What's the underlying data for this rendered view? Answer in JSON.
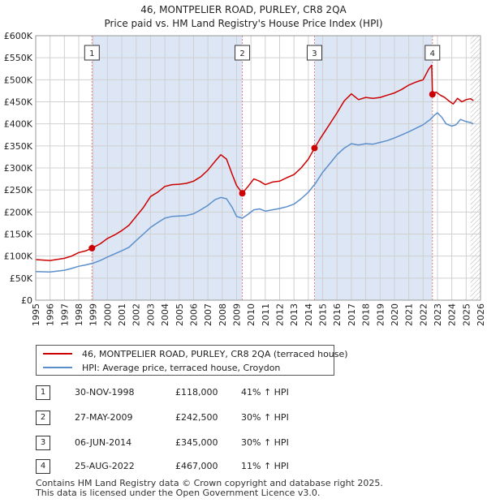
{
  "header": {
    "title": "46, MONTPELIER ROAD, PURLEY, CR8 2QA",
    "subtitle": "Price paid vs. HM Land Registry's House Price Index (HPI)"
  },
  "colors": {
    "property": "#cc0000",
    "hpi": "#5b8fcc",
    "shade": "#dde6f5",
    "grid": "#d0d0d0"
  },
  "chart_data": {
    "type": "line",
    "title": "46, MONTPELIER ROAD, PURLEY, CR8 2QA",
    "subtitle": "Price paid vs. HM Land Registry's House Price Index (HPI)",
    "xlabel": "",
    "ylabel": "",
    "xlim": [
      1995,
      2026
    ],
    "ylim": [
      0,
      600000
    ],
    "y_ticks": [
      0,
      50000,
      100000,
      150000,
      200000,
      250000,
      300000,
      350000,
      400000,
      450000,
      500000,
      550000,
      600000
    ],
    "y_tick_labels": [
      "£0",
      "£50K",
      "£100K",
      "£150K",
      "£200K",
      "£250K",
      "£300K",
      "£350K",
      "£400K",
      "£450K",
      "£500K",
      "£550K",
      "£600K"
    ],
    "x_ticks": [
      1995,
      1996,
      1997,
      1998,
      1999,
      2000,
      2001,
      2002,
      2003,
      2004,
      2005,
      2006,
      2007,
      2008,
      2009,
      2010,
      2011,
      2012,
      2013,
      2014,
      2015,
      2016,
      2017,
      2018,
      2019,
      2020,
      2021,
      2022,
      2023,
      2024,
      2025,
      2026
    ],
    "shaded_ranges": [
      [
        1998.92,
        2009.4
      ],
      [
        2014.43,
        2022.65
      ]
    ],
    "hatched_from": 2025.3,
    "series": [
      {
        "name": "46, MONTPELIER ROAD, PURLEY, CR8 2QA (terraced house)",
        "color": "#cc0000",
        "x": [
          1995.0,
          1996.0,
          1997.0,
          1997.5,
          1998.0,
          1998.5,
          1998.92,
          1999.5,
          2000.0,
          2000.5,
          2001.0,
          2001.5,
          2002.0,
          2002.5,
          2003.0,
          2003.5,
          2004.0,
          2004.5,
          2005.0,
          2005.5,
          2006.0,
          2006.5,
          2007.0,
          2007.5,
          2007.9,
          2008.3,
          2008.7,
          2009.0,
          2009.4,
          2009.8,
          2010.2,
          2010.6,
          2011.0,
          2011.5,
          2012.0,
          2012.5,
          2013.0,
          2013.5,
          2014.0,
          2014.43,
          2014.8,
          2015.2,
          2015.6,
          2016.0,
          2016.5,
          2017.0,
          2017.5,
          2018.0,
          2018.5,
          2019.0,
          2019.5,
          2020.0,
          2020.5,
          2021.0,
          2021.5,
          2022.0,
          2022.4,
          2022.6,
          2022.65,
          2022.9,
          2023.2,
          2023.5,
          2023.8,
          2024.1,
          2024.4,
          2024.7,
          2025.0,
          2025.3,
          2025.5
        ],
        "values": [
          92000,
          90000,
          95000,
          100000,
          108000,
          112000,
          118000,
          128000,
          140000,
          148000,
          158000,
          170000,
          190000,
          210000,
          235000,
          245000,
          258000,
          262000,
          263000,
          265000,
          270000,
          280000,
          295000,
          315000,
          330000,
          320000,
          285000,
          260000,
          242500,
          258000,
          275000,
          270000,
          262000,
          268000,
          270000,
          278000,
          285000,
          300000,
          320000,
          345000,
          365000,
          385000,
          405000,
          425000,
          452000,
          468000,
          455000,
          460000,
          458000,
          460000,
          465000,
          470000,
          478000,
          488000,
          495000,
          500000,
          525000,
          533000,
          467000,
          472000,
          465000,
          460000,
          452000,
          445000,
          458000,
          450000,
          455000,
          457000,
          453000
        ]
      },
      {
        "name": "HPI: Average price, terraced house, Croydon",
        "color": "#5b8fcc",
        "x": [
          1995.0,
          1996.0,
          1997.0,
          1997.5,
          1998.0,
          1998.5,
          1999.0,
          1999.5,
          2000.0,
          2000.5,
          2001.0,
          2001.5,
          2002.0,
          2002.5,
          2003.0,
          2003.5,
          2004.0,
          2004.5,
          2005.0,
          2005.5,
          2006.0,
          2006.5,
          2007.0,
          2007.5,
          2007.9,
          2008.3,
          2008.7,
          2009.0,
          2009.4,
          2009.8,
          2010.2,
          2010.6,
          2011.0,
          2011.5,
          2012.0,
          2012.5,
          2013.0,
          2013.5,
          2014.0,
          2014.5,
          2015.0,
          2015.5,
          2016.0,
          2016.5,
          2017.0,
          2017.5,
          2018.0,
          2018.5,
          2019.0,
          2019.5,
          2020.0,
          2020.5,
          2021.0,
          2021.5,
          2022.0,
          2022.5,
          2022.8,
          2023.0,
          2023.3,
          2023.6,
          2024.0,
          2024.3,
          2024.6,
          2025.0,
          2025.3,
          2025.5
        ],
        "values": [
          65000,
          64000,
          68000,
          72000,
          77000,
          80000,
          84000,
          90000,
          98000,
          105000,
          112000,
          120000,
          135000,
          150000,
          165000,
          176000,
          186000,
          190000,
          191000,
          192000,
          196000,
          205000,
          215000,
          228000,
          233000,
          230000,
          210000,
          190000,
          186000,
          195000,
          205000,
          207000,
          202000,
          205000,
          208000,
          212000,
          218000,
          230000,
          245000,
          265000,
          290000,
          310000,
          330000,
          345000,
          355000,
          352000,
          355000,
          354000,
          358000,
          362000,
          368000,
          375000,
          382000,
          390000,
          398000,
          410000,
          420000,
          425000,
          415000,
          400000,
          395000,
          398000,
          410000,
          405000,
          403000,
          400000
        ]
      }
    ],
    "markers": [
      {
        "id": "1",
        "x": 1998.92,
        "value": 118000
      },
      {
        "id": "2",
        "x": 2009.4,
        "value": 242500
      },
      {
        "id": "3",
        "x": 2014.43,
        "value": 345000
      },
      {
        "id": "4",
        "x": 2022.65,
        "value": 467000
      }
    ]
  },
  "legend": {
    "property": "46, MONTPELIER ROAD, PURLEY, CR8 2QA (terraced house)",
    "hpi": "HPI: Average price, terraced house, Croydon"
  },
  "transactions": [
    {
      "id": "1",
      "date": "30-NOV-1998",
      "price": "£118,000",
      "hpi": "41% ↑ HPI"
    },
    {
      "id": "2",
      "date": "27-MAY-2009",
      "price": "£242,500",
      "hpi": "30% ↑ HPI"
    },
    {
      "id": "3",
      "date": "06-JUN-2014",
      "price": "£345,000",
      "hpi": "30% ↑ HPI"
    },
    {
      "id": "4",
      "date": "25-AUG-2022",
      "price": "£467,000",
      "hpi": "11% ↑ HPI"
    }
  ],
  "footer": {
    "line1": "Contains HM Land Registry data © Crown copyright and database right 2025.",
    "line2": "This data is licensed under the Open Government Licence v3.0."
  }
}
